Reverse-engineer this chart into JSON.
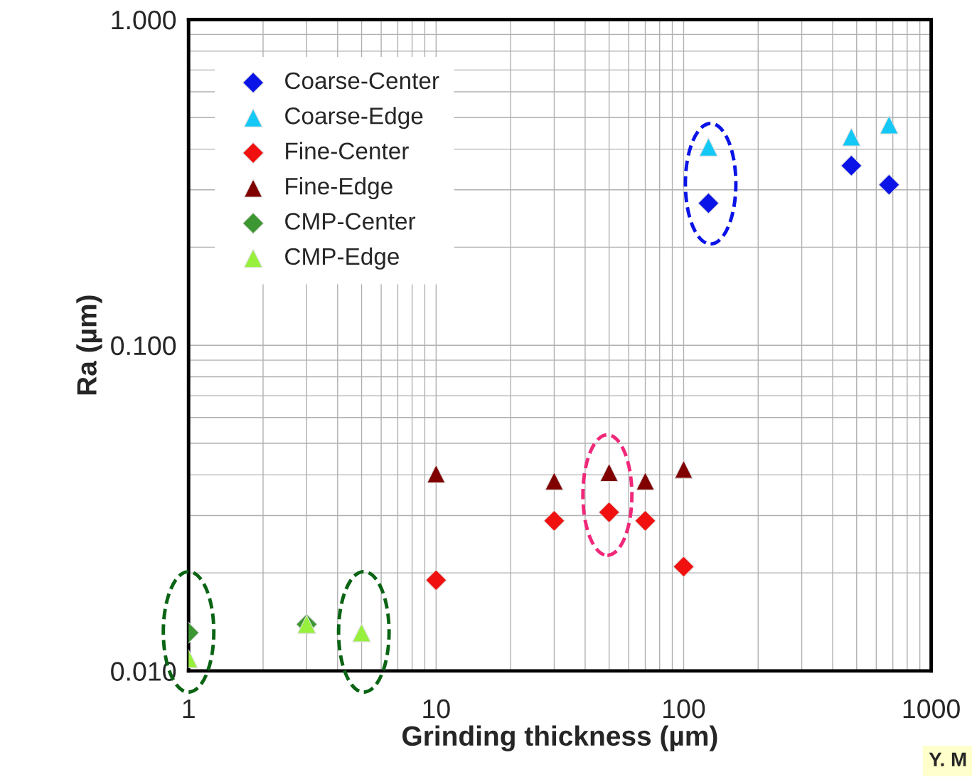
{
  "chart_data": {
    "type": "scatter",
    "xlabel": "Grinding thickness (µm)",
    "ylabel": "Ra (µm)",
    "log": "xy",
    "grid": true,
    "legend": "top left",
    "xlim": [
      1,
      1000
    ],
    "xticks": [
      1,
      10,
      100,
      1000
    ],
    "ylim": [
      0.01,
      1
    ],
    "yticks": [
      {
        "value": 0.01,
        "label": "0.010"
      },
      {
        "value": 0.1,
        "label": "0.100"
      },
      {
        "value": 1,
        "label": "1.000"
      }
    ],
    "annotations": [
      "Y. M"
    ],
    "series": [
      {
        "name": "Coarse-Center",
        "color": "#0a14e6",
        "marker": "diamond",
        "x": [
          126,
          476,
          676
        ],
        "values": [
          0.273,
          0.356,
          0.311
        ]
      },
      {
        "name": "Coarse-Edge",
        "color": "#14c8f5",
        "marker": "triangle",
        "x": [
          126,
          476,
          676
        ],
        "values": [
          0.406,
          0.436,
          0.475
        ]
      },
      {
        "name": "Fine-Center",
        "color": "#f01010",
        "marker": "diamond",
        "x": [
          10,
          30,
          50,
          70,
          100
        ],
        "values": [
          0.019,
          0.0289,
          0.0307,
          0.0289,
          0.0209
        ]
      },
      {
        "name": "Fine-Edge",
        "color": "#800000",
        "marker": "triangle",
        "x": [
          10,
          30,
          50,
          70,
          100
        ],
        "values": [
          0.0403,
          0.0383,
          0.0407,
          0.0383,
          0.0416
        ]
      },
      {
        "name": "CMP-Center",
        "color": "#3c9632",
        "marker": "diamond",
        "x": [
          1,
          3
        ],
        "values": [
          0.0131,
          0.0139
        ]
      },
      {
        "name": "CMP-Edge",
        "color": "#96f03c",
        "marker": "triangle",
        "x": [
          1,
          3,
          5
        ],
        "values": [
          0.0109,
          0.0139,
          0.0131
        ]
      }
    ]
  }
}
